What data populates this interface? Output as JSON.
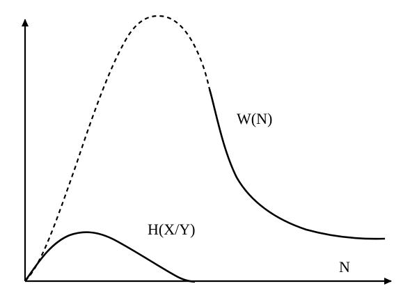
{
  "diagram": {
    "x_axis_label": "N",
    "curves": {
      "w": {
        "label": "W(N)",
        "description_of_style": "dashed at start, solid on the right"
      },
      "h": {
        "label": "H(X/Y)"
      }
    },
    "colors": {
      "ink": "#000000",
      "background": "#ffffff"
    }
  }
}
